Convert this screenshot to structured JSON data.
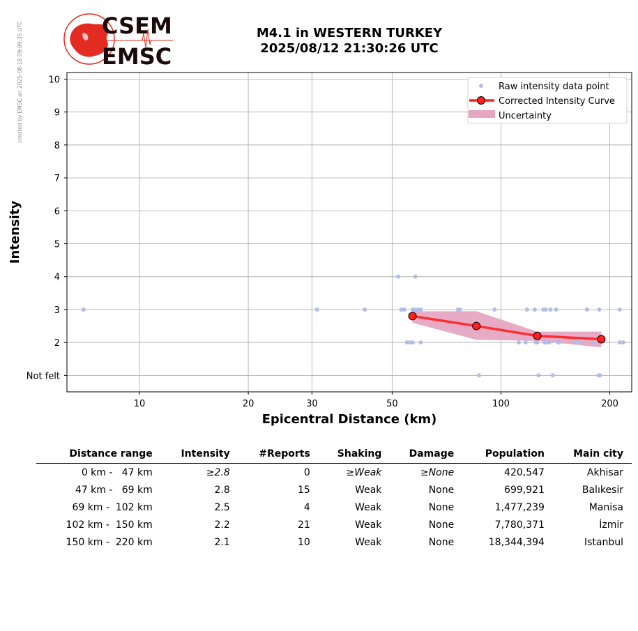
{
  "watermark": "created by EMSC on 2025-08-18 09:09:35 UTC",
  "logo": {
    "line1": "CSEM",
    "line2": "EMSC",
    "color": "#e32b22"
  },
  "header": {
    "title_line1": "M4.1 in WESTERN TURKEY",
    "title_line2": "2025/08/12 21:30:26 UTC"
  },
  "chart_data": {
    "type": "scatter",
    "xlabel": "Epicentral Distance (km)",
    "ylabel": "Intensity",
    "x_scale": "log",
    "xlim": [
      6.3,
      230
    ],
    "ylim": [
      0.5,
      10.2
    ],
    "x_ticks": [
      10,
      20,
      30,
      50,
      100,
      200
    ],
    "y_ticks": [
      1,
      2,
      3,
      4,
      5,
      6,
      7,
      8,
      9,
      10
    ],
    "y_tick_labels": [
      "Not felt",
      "2",
      "3",
      "4",
      "5",
      "6",
      "7",
      "8",
      "9",
      "10"
    ],
    "grid": true,
    "legend_position": "top-right",
    "legend": [
      "Raw intensity data point",
      "Corrected Intensity Curve",
      "Uncertainty"
    ],
    "colors": {
      "raw": "#b0bfe9",
      "curve": "#ff2020",
      "band": "#e7a6c2",
      "grid": "#b0b0b0"
    },
    "raw_points": [
      [
        7,
        3
      ],
      [
        31,
        3
      ],
      [
        42,
        3
      ],
      [
        52,
        4
      ],
      [
        58,
        4
      ],
      [
        53,
        3
      ],
      [
        54,
        3
      ],
      [
        57,
        3
      ],
      [
        58,
        3
      ],
      [
        59,
        3
      ],
      [
        60,
        3
      ],
      [
        76,
        3
      ],
      [
        77,
        3
      ],
      [
        96,
        3
      ],
      [
        118,
        3
      ],
      [
        124,
        3
      ],
      [
        131,
        3
      ],
      [
        133,
        3
      ],
      [
        137,
        3
      ],
      [
        142,
        3
      ],
      [
        173,
        3
      ],
      [
        187,
        3
      ],
      [
        213,
        3
      ],
      [
        55,
        2
      ],
      [
        56,
        2
      ],
      [
        57,
        2
      ],
      [
        60,
        2
      ],
      [
        112,
        2
      ],
      [
        117,
        2
      ],
      [
        125,
        2
      ],
      [
        126,
        2
      ],
      [
        132,
        2
      ],
      [
        134,
        2
      ],
      [
        136,
        2
      ],
      [
        144,
        2
      ],
      [
        145,
        2
      ],
      [
        161,
        2
      ],
      [
        163,
        2
      ],
      [
        165,
        2
      ],
      [
        181,
        2
      ],
      [
        213,
        2
      ],
      [
        218,
        2
      ],
      [
        87,
        1
      ],
      [
        127,
        1
      ],
      [
        139,
        1
      ],
      [
        186,
        1
      ],
      [
        188,
        1
      ]
    ],
    "curve": [
      {
        "x": 56.9,
        "y": 2.8
      },
      {
        "x": 85.5,
        "y": 2.5
      },
      {
        "x": 126,
        "y": 2.2
      },
      {
        "x": 189.5,
        "y": 2.1
      }
    ],
    "uncertainty": {
      "x": [
        56.9,
        85.5,
        126,
        189.5
      ],
      "upper": [
        2.95,
        2.95,
        2.33,
        2.33
      ],
      "lower": [
        2.6,
        2.08,
        2.05,
        1.85
      ]
    }
  },
  "table": {
    "headers": [
      "Distance range",
      "Intensity",
      "#Reports",
      "Shaking",
      "Damage",
      "Population",
      "Main city"
    ],
    "rows": [
      {
        "range": "0 km -   47 km",
        "intensity": "≥2.8",
        "reports": "0",
        "shaking": "≥Weak",
        "damage": "≥None",
        "population": "420,547",
        "city": "Akhisar",
        "italic": true
      },
      {
        "range": "47 km -   69 km",
        "intensity": "2.8",
        "reports": "15",
        "shaking": "Weak",
        "damage": "None",
        "population": "699,921",
        "city": "Balıkesir",
        "italic": false
      },
      {
        "range": "69 km -  102 km",
        "intensity": "2.5",
        "reports": "4",
        "shaking": "Weak",
        "damage": "None",
        "population": "1,477,239",
        "city": "Manisa",
        "italic": false
      },
      {
        "range": "102 km -  150 km",
        "intensity": "2.2",
        "reports": "21",
        "shaking": "Weak",
        "damage": "None",
        "population": "7,780,371",
        "city": "İzmir",
        "italic": false
      },
      {
        "range": "150 km -  220 km",
        "intensity": "2.1",
        "reports": "10",
        "shaking": "Weak",
        "damage": "None",
        "population": "18,344,394",
        "city": "Istanbul",
        "italic": false
      }
    ]
  }
}
